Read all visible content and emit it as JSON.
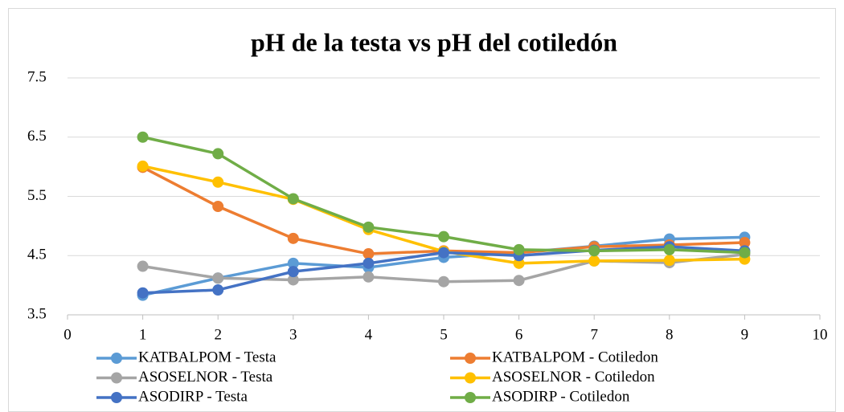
{
  "chart_data": {
    "type": "line",
    "title": "pH de la testa vs pH del cotiledón",
    "x": [
      1,
      2,
      3,
      4,
      5,
      6,
      7,
      8,
      9
    ],
    "series": [
      {
        "name": "KATBALPOM - Testa",
        "color": "#5b9bd5",
        "values": [
          3.83,
          4.12,
          4.37,
          4.3,
          4.47,
          4.55,
          4.66,
          4.78,
          4.81
        ]
      },
      {
        "name": "KATBALPOM - Cotiledon",
        "color": "#ed7d31",
        "values": [
          5.99,
          5.33,
          4.79,
          4.53,
          4.58,
          4.55,
          4.65,
          4.68,
          4.72
        ]
      },
      {
        "name": "ASOSELNOR - Testa",
        "color": "#a5a5a5",
        "values": [
          4.32,
          4.12,
          4.09,
          4.14,
          4.06,
          4.08,
          4.41,
          4.38,
          4.52
        ]
      },
      {
        "name": "ASOSELNOR - Cotiledon",
        "color": "#ffc000",
        "values": [
          6.01,
          5.74,
          5.45,
          4.94,
          4.57,
          4.37,
          4.41,
          4.42,
          4.44
        ]
      },
      {
        "name": "ASODIRP - Testa",
        "color": "#4472c4",
        "values": [
          3.87,
          3.92,
          4.23,
          4.37,
          4.55,
          4.5,
          4.59,
          4.65,
          4.58
        ]
      },
      {
        "name": "ASODIRP - Cotiledon",
        "color": "#70ad47",
        "values": [
          6.5,
          6.22,
          5.46,
          4.98,
          4.82,
          4.6,
          4.58,
          4.6,
          4.55
        ]
      }
    ],
    "xlim": [
      0,
      10
    ],
    "xticks": [
      0,
      1,
      2,
      3,
      4,
      5,
      6,
      7,
      8,
      9,
      10
    ],
    "ylim": [
      3.5,
      7.5
    ],
    "yticks": [
      3.5,
      4.5,
      5.5,
      6.5,
      7.5
    ],
    "grid": true,
    "legend": "bottom"
  }
}
